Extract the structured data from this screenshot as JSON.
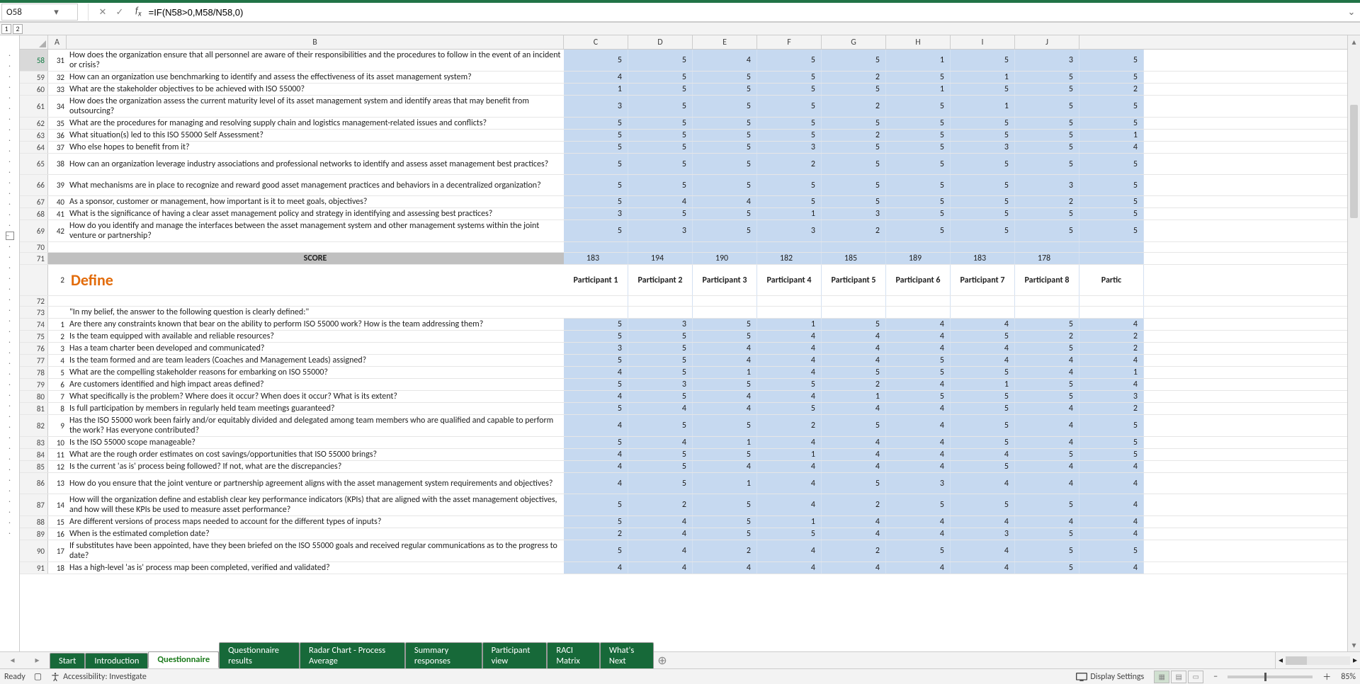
{
  "formula_bar": {
    "cell_ref": "O58",
    "formula": "=IF(N58>0,M58/N58,0)"
  },
  "outline_levels": [
    "1",
    "2"
  ],
  "columns": {
    "row_header": "",
    "A": "A",
    "B": "B",
    "letters": [
      "C",
      "D",
      "E",
      "F",
      "G",
      "H",
      "I",
      "J"
    ]
  },
  "section_define": {
    "title": "Define",
    "participants": [
      "Participant 1",
      "Participant 2",
      "Participant 3",
      "Participant 4",
      "Participant 5",
      "Participant 6",
      "Participant 7",
      "Participant 8",
      "Partic"
    ]
  },
  "score_label": "SCORE",
  "score_values": [
    "183",
    "194",
    "190",
    "182",
    "185",
    "189",
    "183",
    "178"
  ],
  "quote": "\"In my belief, the answer to the following question is clearly defined:\"",
  "top_rows": [
    {
      "rh": "58",
      "a": "31",
      "b": "How does the organization ensure that all personnel are aware of their responsibilities and the procedures to follow in the event of an incident or crisis?",
      "v": [
        "5",
        "5",
        "4",
        "5",
        "5",
        "1",
        "5",
        "3",
        "5"
      ],
      "tall": true,
      "sel": true
    },
    {
      "rh": "59",
      "a": "32",
      "b": "How can an organization use benchmarking to identify and assess the effectiveness of its asset management system?",
      "v": [
        "4",
        "5",
        "5",
        "5",
        "2",
        "5",
        "1",
        "5",
        "5"
      ]
    },
    {
      "rh": "60",
      "a": "33",
      "b": "What are the stakeholder objectives to be achieved with ISO 55000?",
      "v": [
        "1",
        "5",
        "5",
        "5",
        "5",
        "1",
        "5",
        "5",
        "2"
      ]
    },
    {
      "rh": "61",
      "a": "34",
      "b": "How does the organization assess the current maturity level of its asset management system and identify areas that may benefit from outsourcing?",
      "v": [
        "3",
        "5",
        "5",
        "5",
        "2",
        "5",
        "1",
        "5",
        "5"
      ],
      "tall": true
    },
    {
      "rh": "62",
      "a": "35",
      "b": "What are the procedures for managing and resolving supply chain and logistics management-related issues and conflicts?",
      "v": [
        "5",
        "5",
        "5",
        "5",
        "5",
        "5",
        "5",
        "5",
        "5"
      ]
    },
    {
      "rh": "63",
      "a": "36",
      "b": "What situation(s) led to this ISO 55000 Self Assessment?",
      "v": [
        "5",
        "5",
        "5",
        "5",
        "2",
        "5",
        "5",
        "5",
        "1"
      ]
    },
    {
      "rh": "64",
      "a": "37",
      "b": "Who else hopes to benefit from it?",
      "v": [
        "5",
        "5",
        "5",
        "3",
        "5",
        "5",
        "3",
        "5",
        "4"
      ]
    },
    {
      "rh": "65",
      "a": "38",
      "b": "How can an organization leverage industry associations and professional networks to identify and assess asset management best practices?",
      "v": [
        "5",
        "5",
        "5",
        "2",
        "5",
        "5",
        "5",
        "5",
        "5"
      ],
      "tall": true
    },
    {
      "rh": "66",
      "a": "39",
      "b": "What mechanisms are in place to recognize and reward good asset management practices and behaviors in a decentralized organization?",
      "v": [
        "5",
        "5",
        "5",
        "5",
        "5",
        "5",
        "5",
        "3",
        "5"
      ],
      "tall": true
    },
    {
      "rh": "67",
      "a": "40",
      "b": "As a sponsor, customer or management, how important is it to meet goals, objectives?",
      "v": [
        "5",
        "4",
        "4",
        "5",
        "5",
        "5",
        "5",
        "2",
        "5"
      ]
    },
    {
      "rh": "68",
      "a": "41",
      "b": "What is the significance of having a clear asset management policy and strategy in identifying and assessing best practices?",
      "v": [
        "3",
        "5",
        "5",
        "1",
        "3",
        "5",
        "5",
        "5",
        "5"
      ]
    },
    {
      "rh": "69",
      "a": "42",
      "b": "How do you identify and manage the interfaces between the asset management system and other management systems within the joint venture or partnership?",
      "v": [
        "5",
        "3",
        "5",
        "3",
        "2",
        "5",
        "5",
        "5",
        "5"
      ],
      "tall": true
    }
  ],
  "define_rows": [
    {
      "rh": "74",
      "a": "1",
      "b": "Are there any constraints known that bear on the ability to perform ISO 55000 work? How is the team addressing them?",
      "v": [
        "5",
        "3",
        "5",
        "1",
        "5",
        "4",
        "4",
        "5",
        "4"
      ]
    },
    {
      "rh": "75",
      "a": "2",
      "b": "Is the team equipped with available and reliable resources?",
      "v": [
        "5",
        "5",
        "5",
        "4",
        "4",
        "4",
        "5",
        "2",
        "2"
      ]
    },
    {
      "rh": "76",
      "a": "3",
      "b": "Has a team charter been developed and communicated?",
      "v": [
        "3",
        "5",
        "4",
        "4",
        "4",
        "4",
        "4",
        "5",
        "2"
      ]
    },
    {
      "rh": "77",
      "a": "4",
      "b": "Is the team formed and are team leaders (Coaches and Management Leads) assigned?",
      "v": [
        "5",
        "5",
        "4",
        "4",
        "4",
        "5",
        "4",
        "4",
        "4"
      ]
    },
    {
      "rh": "78",
      "a": "5",
      "b": "What are the compelling stakeholder reasons for embarking on ISO 55000?",
      "v": [
        "4",
        "5",
        "1",
        "4",
        "5",
        "5",
        "5",
        "4",
        "1"
      ]
    },
    {
      "rh": "79",
      "a": "6",
      "b": "Are customers identified and high impact areas defined?",
      "v": [
        "5",
        "3",
        "5",
        "5",
        "2",
        "4",
        "1",
        "5",
        "4"
      ]
    },
    {
      "rh": "80",
      "a": "7",
      "b": "What specifically is the problem? Where does it occur? When does it occur? What is its extent?",
      "v": [
        "4",
        "5",
        "4",
        "4",
        "1",
        "5",
        "5",
        "5",
        "3"
      ]
    },
    {
      "rh": "81",
      "a": "8",
      "b": "Is full participation by members in regularly held team meetings guaranteed?",
      "v": [
        "5",
        "4",
        "4",
        "5",
        "4",
        "4",
        "5",
        "4",
        "2"
      ]
    },
    {
      "rh": "82",
      "a": "9",
      "b": "Has the ISO 55000 work been fairly and/or equitably divided and delegated among team members who are qualified and capable to perform the work? Has everyone contributed?",
      "v": [
        "4",
        "5",
        "5",
        "2",
        "5",
        "4",
        "5",
        "4",
        "5"
      ],
      "tall": true
    },
    {
      "rh": "83",
      "a": "10",
      "b": "Is the ISO 55000 scope manageable?",
      "v": [
        "5",
        "4",
        "1",
        "4",
        "4",
        "4",
        "5",
        "4",
        "5"
      ]
    },
    {
      "rh": "84",
      "a": "11",
      "b": "What are the rough order estimates on cost savings/opportunities that ISO 55000 brings?",
      "v": [
        "4",
        "5",
        "5",
        "1",
        "4",
        "4",
        "4",
        "5",
        "5"
      ]
    },
    {
      "rh": "85",
      "a": "12",
      "b": "Is the current 'as is' process being followed? If not, what are the discrepancies?",
      "v": [
        "4",
        "5",
        "4",
        "4",
        "4",
        "4",
        "5",
        "4",
        "4"
      ]
    },
    {
      "rh": "86",
      "a": "13",
      "b": "How do you ensure that the joint venture or partnership agreement aligns with the asset management system requirements and objectives?",
      "v": [
        "4",
        "5",
        "1",
        "4",
        "5",
        "3",
        "4",
        "4",
        "4"
      ],
      "tall": true
    },
    {
      "rh": "87",
      "a": "14",
      "b": "How will the organization define and establish clear key performance indicators (KPIs) that are aligned with the asset management objectives, and how will these KPIs be used to measure asset performance?",
      "v": [
        "5",
        "2",
        "5",
        "4",
        "2",
        "5",
        "5",
        "5",
        "4"
      ],
      "tall": true
    },
    {
      "rh": "88",
      "a": "15",
      "b": "Are different versions of process maps needed to account for the different types of inputs?",
      "v": [
        "5",
        "4",
        "5",
        "1",
        "4",
        "4",
        "4",
        "4",
        "4"
      ]
    },
    {
      "rh": "89",
      "a": "16",
      "b": "When is the estimated completion date?",
      "v": [
        "2",
        "4",
        "5",
        "5",
        "4",
        "4",
        "3",
        "5",
        "4"
      ]
    },
    {
      "rh": "90",
      "a": "17",
      "b": "If substitutes have been appointed, have they been briefed on the ISO 55000 goals and received regular communications as to the progress to date?",
      "v": [
        "5",
        "4",
        "2",
        "4",
        "2",
        "5",
        "4",
        "5",
        "5"
      ],
      "tall": true
    },
    {
      "rh": "91",
      "a": "18",
      "b": "Has a high-level 'as is' process map been completed, verified and validated?",
      "v": [
        "4",
        "4",
        "4",
        "4",
        "4",
        "4",
        "4",
        "5",
        "4"
      ]
    }
  ],
  "blank_rows": [
    {
      "rh": "70"
    },
    {
      "rh": "72"
    },
    {
      "rh": "73"
    }
  ],
  "tabs": [
    {
      "label": "Start",
      "active": false
    },
    {
      "label": "Introduction",
      "active": false
    },
    {
      "label": "Questionnaire",
      "active": true
    },
    {
      "label": "Questionnaire results",
      "active": false
    },
    {
      "label": "Radar Chart - Process Average",
      "active": false
    },
    {
      "label": "Summary responses",
      "active": false
    },
    {
      "label": "Participant view",
      "active": false
    },
    {
      "label": "RACI Matrix",
      "active": false
    },
    {
      "label": "What's Next",
      "active": false
    }
  ],
  "status": {
    "ready": "Ready",
    "accessibility": "Accessibility: Investigate",
    "display": "Display Settings",
    "zoom": "85%"
  }
}
